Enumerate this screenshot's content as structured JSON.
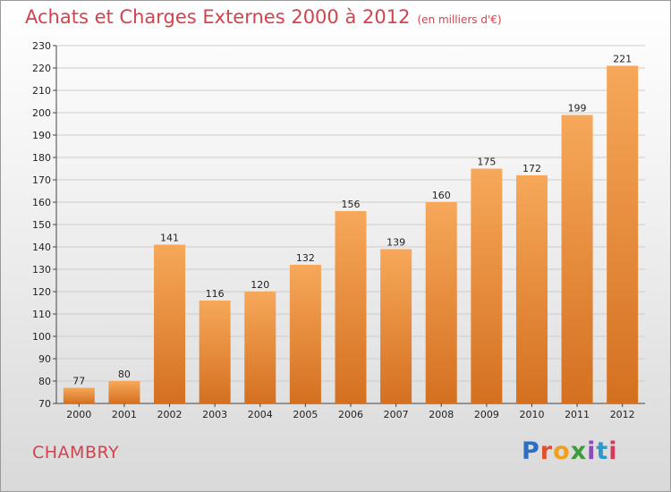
{
  "title": "Achats et Charges Externes 2000 à 2012",
  "subtitle": "(en milliers d'€)",
  "commune": "CHAMBRY",
  "logo": {
    "text": "Proxiti"
  },
  "colors": {
    "bar_top": "#f7a85a",
    "bar_bottom": "#d47020",
    "title": "#d2434e",
    "grid": "#cccccc"
  },
  "chart_data": {
    "type": "bar",
    "title": "Achats et Charges Externes 2000 à 2012",
    "subtitle": "(en milliers d'€)",
    "categories": [
      "2000",
      "2001",
      "2002",
      "2003",
      "2004",
      "2005",
      "2006",
      "2007",
      "2008",
      "2009",
      "2010",
      "2011",
      "2012"
    ],
    "values": [
      77,
      80,
      141,
      116,
      120,
      132,
      156,
      139,
      160,
      175,
      172,
      199,
      221
    ],
    "ylim": [
      70,
      230
    ],
    "yticks": [
      70,
      80,
      90,
      100,
      110,
      120,
      130,
      140,
      150,
      160,
      170,
      180,
      190,
      200,
      210,
      220,
      230
    ],
    "grid": true,
    "data_labels": true
  }
}
